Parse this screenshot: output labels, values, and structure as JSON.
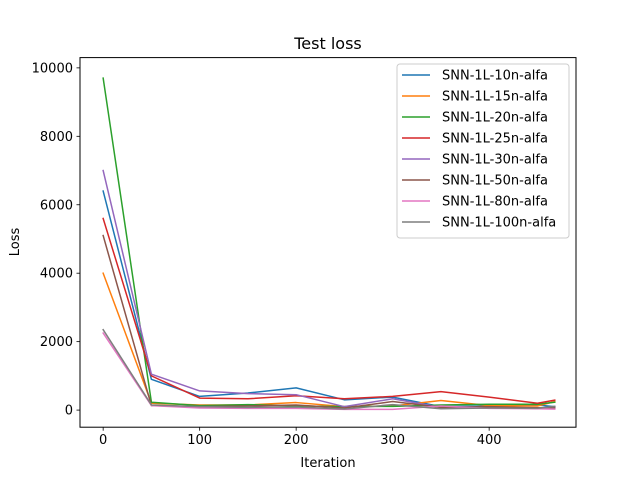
{
  "chart_data": {
    "type": "line",
    "title": "Test loss",
    "xlabel": "Iteration",
    "ylabel": "Loss",
    "xlim": [
      -24,
      490
    ],
    "ylim": [
      -500,
      10300
    ],
    "xticks": [
      0,
      100,
      200,
      300,
      400
    ],
    "yticks": [
      0,
      2000,
      4000,
      6000,
      8000,
      10000
    ],
    "grid": false,
    "legend_position": "top-right",
    "series": [
      {
        "name": "SNN-1L-10n-alfa",
        "color": "#1f77b4",
        "x": [
          0,
          50,
          100,
          150,
          200,
          250,
          300,
          350,
          400,
          450,
          468
        ],
        "y": [
          6400,
          900,
          400,
          500,
          650,
          300,
          380,
          100,
          120,
          150,
          100
        ]
      },
      {
        "name": "SNN-1L-15n-alfa",
        "color": "#ff7f0e",
        "x": [
          0,
          50,
          100,
          150,
          200,
          250,
          300,
          350,
          400,
          450,
          468
        ],
        "y": [
          4000,
          200,
          150,
          150,
          220,
          100,
          120,
          280,
          130,
          120,
          250
        ]
      },
      {
        "name": "SNN-1L-20n-alfa",
        "color": "#2ca02c",
        "x": [
          0,
          50,
          100,
          150,
          200,
          250,
          300,
          350,
          400,
          450,
          468
        ],
        "y": [
          9700,
          230,
          130,
          160,
          120,
          100,
          110,
          150,
          170,
          170,
          230
        ]
      },
      {
        "name": "SNN-1L-25n-alfa",
        "color": "#d62728",
        "x": [
          0,
          50,
          100,
          150,
          200,
          250,
          300,
          350,
          400,
          450,
          468
        ],
        "y": [
          5600,
          1000,
          350,
          330,
          420,
          330,
          400,
          540,
          380,
          200,
          290
        ]
      },
      {
        "name": "SNN-1L-30n-alfa",
        "color": "#9467bd",
        "x": [
          0,
          50,
          100,
          150,
          200,
          250,
          300,
          350,
          400,
          450,
          468
        ],
        "y": [
          7000,
          1050,
          560,
          480,
          450,
          100,
          330,
          80,
          60,
          50,
          40
        ]
      },
      {
        "name": "SNN-1L-50n-alfa",
        "color": "#8c564b",
        "x": [
          0,
          50,
          100,
          150,
          200,
          250,
          300,
          350,
          400,
          450,
          468
        ],
        "y": [
          5100,
          130,
          100,
          120,
          150,
          60,
          250,
          80,
          100,
          70,
          60
        ]
      },
      {
        "name": "SNN-1L-80n-alfa",
        "color": "#e377c2",
        "x": [
          0,
          50,
          100,
          150,
          200,
          250,
          300,
          350,
          400,
          450,
          468
        ],
        "y": [
          2250,
          130,
          60,
          50,
          50,
          20,
          20,
          120,
          50,
          40,
          30
        ]
      },
      {
        "name": "SNN-1L-100n-alfa",
        "color": "#7f7f7f",
        "x": [
          0,
          50,
          100,
          150,
          200,
          250,
          300,
          350,
          400,
          450,
          468
        ],
        "y": [
          2350,
          150,
          100,
          80,
          90,
          30,
          160,
          40,
          60,
          50,
          110
        ]
      }
    ]
  }
}
